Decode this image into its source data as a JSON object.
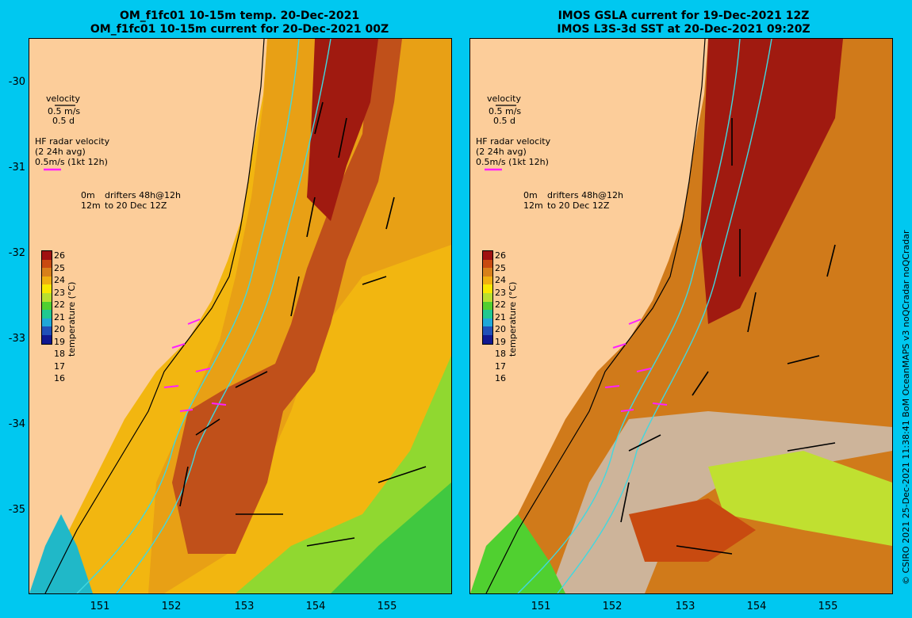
{
  "left_panel": {
    "title_line1": "OM_f1fc01 10-15m temp. 20-Dec-2021",
    "title_line2": "OM_f1fc01 10-15m current for 20-Dec-2021 00Z"
  },
  "right_panel": {
    "title_line1": "IMOS GSLA current for 19-Dec-2021 12Z",
    "title_line2": "IMOS L3S-3d SST at 20-Dec-2021 09:20Z"
  },
  "axes": {
    "lat_labels": [
      "-30",
      "-31",
      "-32",
      "-33",
      "-34",
      "-35"
    ],
    "lon_labels": [
      "151",
      "152",
      "153",
      "154",
      "155"
    ]
  },
  "legend": {
    "velocity_title": "velocity",
    "velocity_scale": "0.5 m/s",
    "velocity_time": "0.5 d",
    "hf_title": "HF radar velocity",
    "hf_avg": "(2 24h avg)",
    "hf_scale": "0.5m/s (1kt 12h)",
    "drifters_line1": "0m",
    "drifters_line1_text": "drifters 48h@12h",
    "drifters_line2": "12m",
    "drifters_line2_text": "to 20 Dec 12Z"
  },
  "colorbar": {
    "title": "temperature (°C)",
    "ticks": [
      "26",
      "25",
      "24",
      "23",
      "22",
      "21",
      "20",
      "19",
      "18",
      "17",
      "16"
    ],
    "colors": [
      "#a01010",
      "#c84a10",
      "#d8801a",
      "#f0b010",
      "#f8e800",
      "#b8e030",
      "#50d030",
      "#20c890",
      "#20a8d8",
      "#2050b8",
      "#101890"
    ]
  },
  "credit": "© CSIRO 2021  25-Dec-2021 11:38:41 BoM OceanMAPS v3 noQCradar noQCradar",
  "colors": {
    "background": "#00c8f0",
    "land": "#fccd9a",
    "missing": "#cdb49a",
    "contour": "#40d8e0",
    "hf_radar": "#ff20ff"
  }
}
